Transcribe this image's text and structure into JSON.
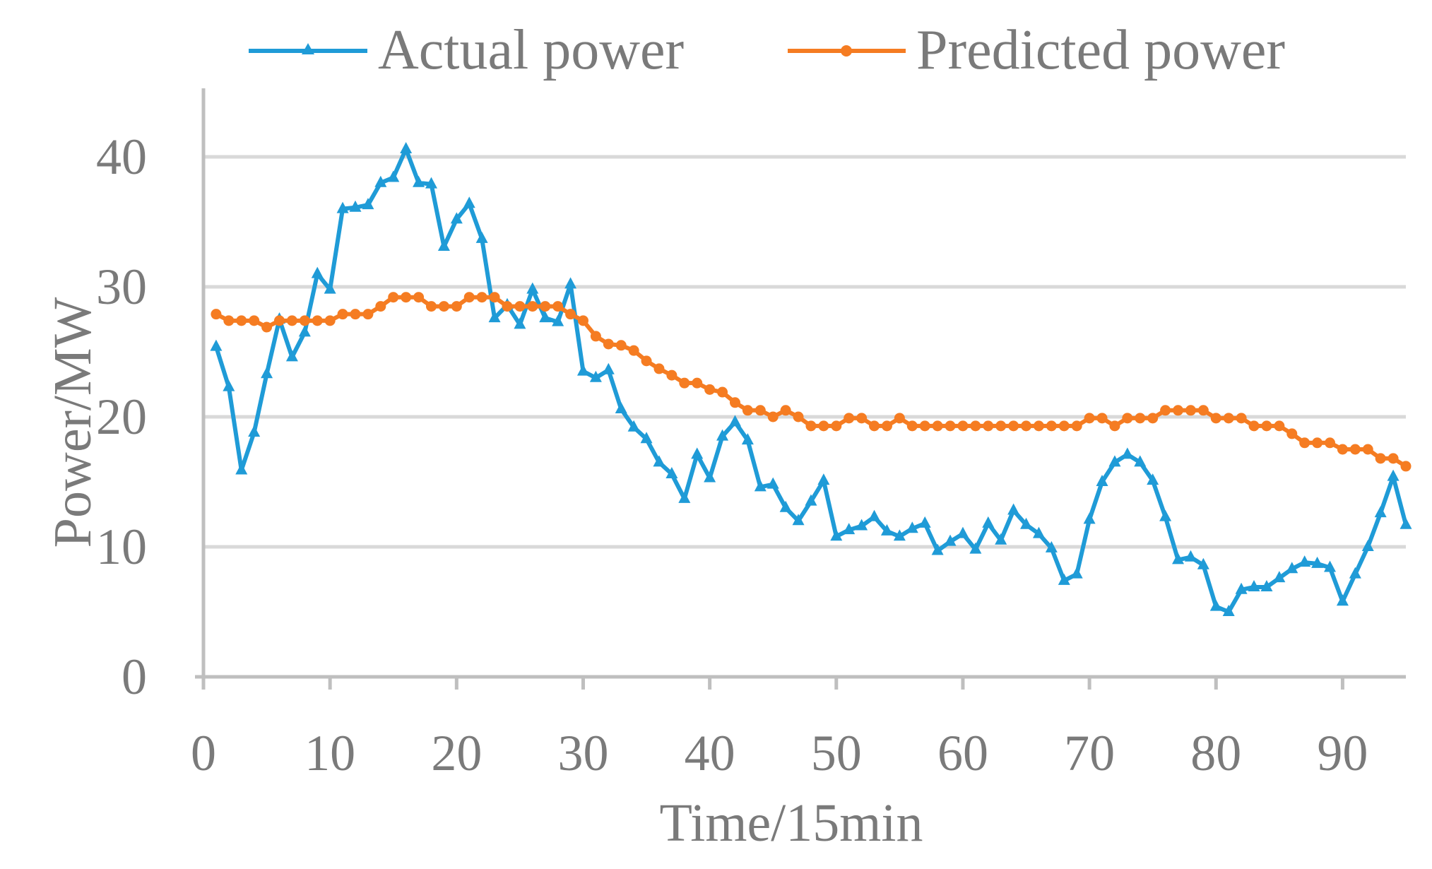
{
  "colors": {
    "actual": "#1f9bd7",
    "predicted": "#f57c22",
    "grid": "#d9d9d9",
    "axis": "#bfbfbf",
    "text": "#7a7a7a"
  },
  "chart_data": {
    "type": "line",
    "title": "",
    "xlabel": "Time/15min",
    "ylabel": "Power/MW",
    "xlim": [
      0,
      95
    ],
    "ylim": [
      0,
      45
    ],
    "xticks": [
      0,
      10,
      20,
      30,
      40,
      50,
      60,
      70,
      80,
      90
    ],
    "yticks": [
      0,
      10,
      20,
      30,
      40
    ],
    "grid": "horizontal",
    "legend_position": "top",
    "x": [
      1,
      2,
      3,
      4,
      5,
      6,
      7,
      8,
      9,
      10,
      11,
      12,
      13,
      14,
      15,
      16,
      17,
      18,
      19,
      20,
      21,
      22,
      23,
      24,
      25,
      26,
      27,
      28,
      29,
      30,
      31,
      32,
      33,
      34,
      35,
      36,
      37,
      38,
      39,
      40,
      41,
      42,
      43,
      44,
      45,
      46,
      47,
      48,
      49,
      50,
      51,
      52,
      53,
      54,
      55,
      56,
      57,
      58,
      59,
      60,
      61,
      62,
      63,
      64,
      65,
      66,
      67,
      68,
      69,
      70,
      71,
      72,
      73,
      74,
      75,
      76,
      77,
      78,
      79,
      80,
      81,
      82,
      83,
      84,
      85,
      86,
      87,
      88,
      89,
      90,
      91,
      92,
      93,
      94,
      95
    ],
    "series": [
      {
        "name": "Actual power",
        "marker": "triangle",
        "values": [
          25.4,
          22.3,
          15.9,
          18.8,
          23.3,
          27.5,
          24.6,
          26.5,
          31.0,
          29.8,
          36.0,
          36.1,
          36.3,
          38.0,
          38.4,
          40.6,
          38.0,
          37.9,
          33.1,
          35.2,
          36.4,
          33.7,
          27.6,
          28.6,
          27.1,
          29.8,
          27.6,
          27.3,
          30.2,
          23.5,
          23.0,
          23.6,
          20.6,
          19.2,
          18.3,
          16.5,
          15.6,
          13.7,
          17.1,
          15.3,
          18.5,
          19.6,
          18.2,
          14.6,
          14.8,
          13.0,
          12.0,
          13.5,
          15.1,
          10.8,
          11.3,
          11.6,
          12.3,
          11.2,
          10.8,
          11.4,
          11.8,
          9.7,
          10.4,
          11.0,
          9.8,
          11.8,
          10.5,
          12.8,
          11.7,
          11.0,
          9.9,
          7.4,
          7.9,
          12.1,
          15.0,
          16.5,
          17.1,
          16.5,
          15.1,
          12.3,
          9.0,
          9.2,
          8.6,
          5.4,
          5.0,
          6.7,
          6.9,
          6.9,
          7.6,
          8.3,
          8.8,
          8.7,
          8.4,
          5.8,
          7.9,
          10.0,
          12.6,
          15.4,
          11.7
        ]
      },
      {
        "name": "Predicted power",
        "marker": "circle",
        "values": [
          27.9,
          27.4,
          27.4,
          27.4,
          26.9,
          27.4,
          27.4,
          27.4,
          27.4,
          27.4,
          27.9,
          27.9,
          27.9,
          28.5,
          29.2,
          29.2,
          29.2,
          28.5,
          28.5,
          28.5,
          29.2,
          29.2,
          29.2,
          28.5,
          28.5,
          28.5,
          28.5,
          28.5,
          27.9,
          27.4,
          26.2,
          25.6,
          25.5,
          25.1,
          24.3,
          23.7,
          23.2,
          22.6,
          22.6,
          22.1,
          21.9,
          21.1,
          20.5,
          20.5,
          20.0,
          20.5,
          20.0,
          19.3,
          19.3,
          19.3,
          19.9,
          19.9,
          19.3,
          19.3,
          19.9,
          19.3,
          19.3,
          19.3,
          19.3,
          19.3,
          19.3,
          19.3,
          19.3,
          19.3,
          19.3,
          19.3,
          19.3,
          19.3,
          19.3,
          19.9,
          19.9,
          19.3,
          19.9,
          19.9,
          19.9,
          20.5,
          20.5,
          20.5,
          20.5,
          19.9,
          19.9,
          19.9,
          19.3,
          19.3,
          19.3,
          18.7,
          18.0,
          18.0,
          18.0,
          17.5,
          17.5,
          17.5,
          16.8,
          16.8,
          16.2
        ]
      }
    ]
  }
}
